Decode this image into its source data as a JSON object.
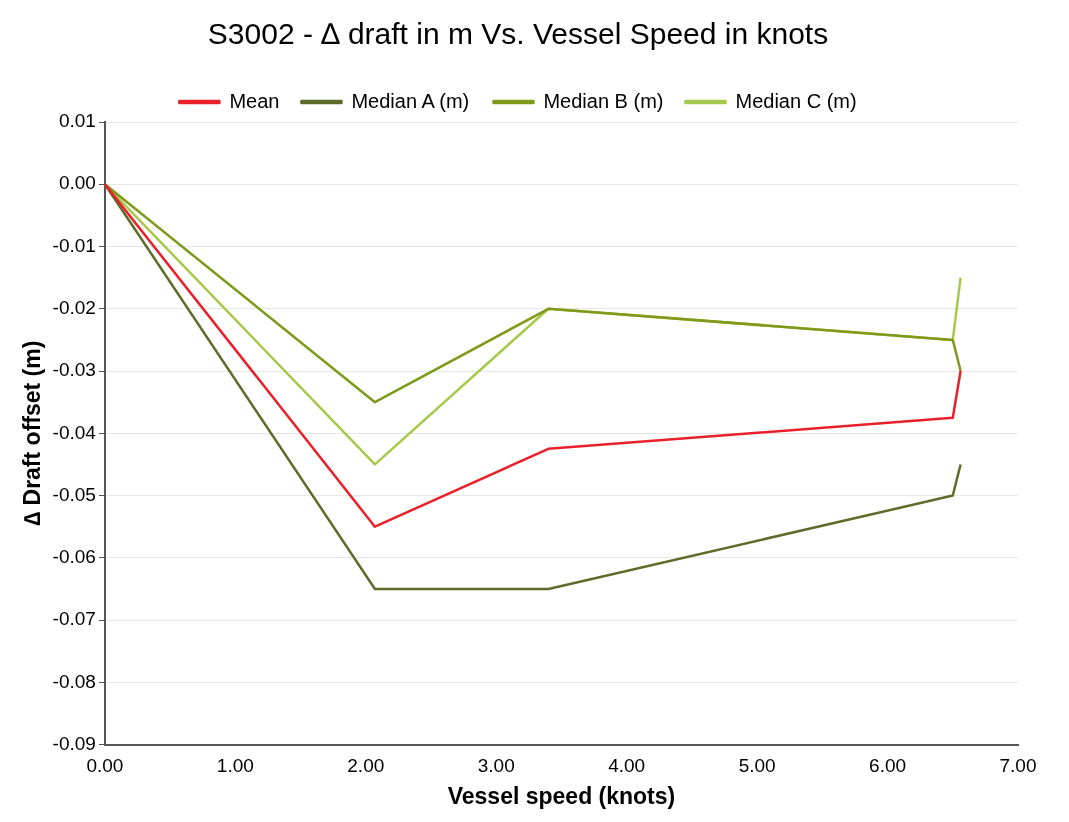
{
  "chart_data": {
    "type": "line",
    "title": "S3002 - ∆ draft in m Vs. Vessel Speed in knots",
    "xlabel": "Vessel speed (knots)",
    "ylabel": "∆ Draft offset (m)",
    "x": [
      0,
      2.07,
      3.4,
      6.5,
      6.56
    ],
    "series": [
      {
        "name": "Mean",
        "color": "#e8202a",
        "values": [
          0,
          -0.055,
          -0.0425,
          -0.0375,
          -0.03
        ]
      },
      {
        "name": "Median A (m)",
        "color": "#5f6b2a",
        "values": [
          0,
          -0.065,
          -0.065,
          -0.05,
          -0.045
        ]
      },
      {
        "name": "Median B (m)",
        "color": "#7f9a1a",
        "values": [
          0,
          -0.035,
          -0.02,
          -0.025,
          -0.03
        ]
      },
      {
        "name": "Median C (m)",
        "color": "#a8c84a",
        "values": [
          0,
          -0.045,
          -0.02,
          -0.025,
          -0.015
        ]
      }
    ],
    "xlim": [
      0,
      7
    ],
    "xticks": [
      {
        "value": 0,
        "label": "0.00"
      },
      {
        "value": 1,
        "label": "1.00"
      },
      {
        "value": 2,
        "label": "2.00"
      },
      {
        "value": 3,
        "label": "3.00"
      },
      {
        "value": 4,
        "label": "4.00"
      },
      {
        "value": 5,
        "label": "5.00"
      },
      {
        "value": 6,
        "label": "6.00"
      },
      {
        "value": 7,
        "label": "7.00"
      }
    ],
    "ylim": [
      -0.09,
      0.01
    ],
    "yticks": [
      {
        "value": 0.01,
        "label": "0.01"
      },
      {
        "value": 0,
        "label": "0.00"
      },
      {
        "value": -0.01,
        "label": "-0.01"
      },
      {
        "value": -0.02,
        "label": "-0.02"
      },
      {
        "value": -0.03,
        "label": "-0.03"
      },
      {
        "value": -0.04,
        "label": "-0.04"
      },
      {
        "value": -0.05,
        "label": "-0.05"
      },
      {
        "value": -0.06,
        "label": "-0.06"
      },
      {
        "value": -0.07,
        "label": "-0.07"
      },
      {
        "value": -0.08,
        "label": "-0.08"
      },
      {
        "value": -0.09,
        "label": "-0.09"
      }
    ],
    "grid": "y",
    "legend": "top",
    "marker": "none",
    "line_style": "solid"
  }
}
